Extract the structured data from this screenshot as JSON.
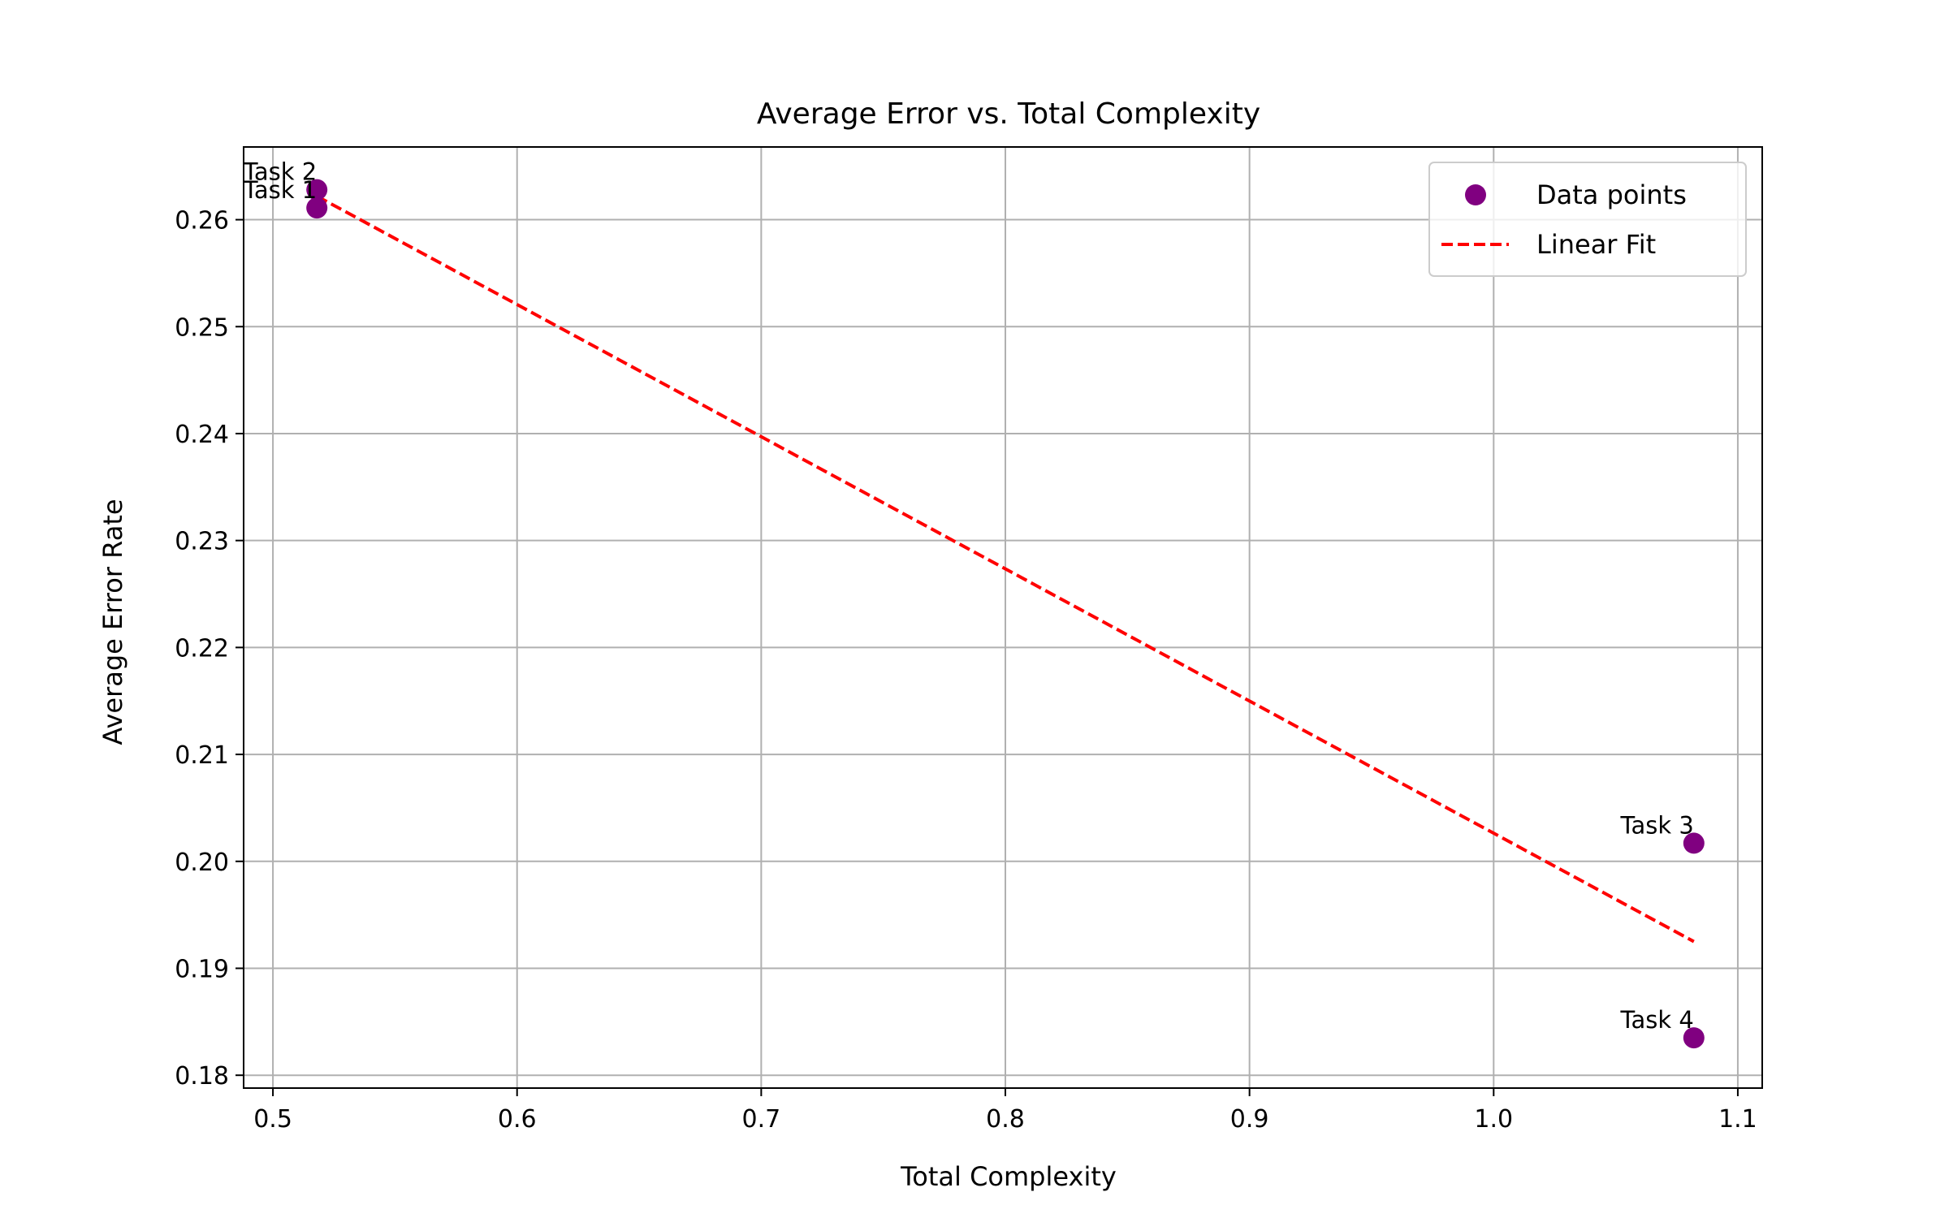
{
  "chart_data": {
    "type": "scatter",
    "title": "Average Error vs. Total Complexity",
    "xlabel": "Total Complexity",
    "ylabel": "Average Error Rate",
    "xlim": [
      0.488,
      1.11
    ],
    "ylim": [
      0.1788,
      0.2668
    ],
    "xticks": [
      0.5,
      0.6,
      0.7,
      0.8,
      0.9,
      1.0,
      1.1
    ],
    "xtick_labels": [
      "0.5",
      "0.6",
      "0.7",
      "0.8",
      "0.9",
      "1.0",
      "1.1"
    ],
    "yticks": [
      0.18,
      0.19,
      0.2,
      0.21,
      0.22,
      0.23,
      0.24,
      0.25,
      0.26
    ],
    "ytick_labels": [
      "0.18",
      "0.19",
      "0.20",
      "0.21",
      "0.22",
      "0.23",
      "0.24",
      "0.25",
      "0.26"
    ],
    "grid": true,
    "legend_position": "top-right",
    "series": [
      {
        "name": "Data points",
        "kind": "scatter",
        "color": "#800080",
        "points": [
          {
            "label": "Task 1",
            "x": 0.518,
            "y": 0.2611
          },
          {
            "label": "Task 2",
            "x": 0.518,
            "y": 0.2628
          },
          {
            "label": "Task 3",
            "x": 1.082,
            "y": 0.2017
          },
          {
            "label": "Task 4",
            "x": 1.082,
            "y": 0.1835
          }
        ]
      },
      {
        "name": "Linear Fit",
        "kind": "line",
        "style": "dashed",
        "color": "#ff0000",
        "points": [
          {
            "x": 0.518,
            "y": 0.2622
          },
          {
            "x": 1.082,
            "y": 0.1925
          }
        ]
      }
    ]
  }
}
